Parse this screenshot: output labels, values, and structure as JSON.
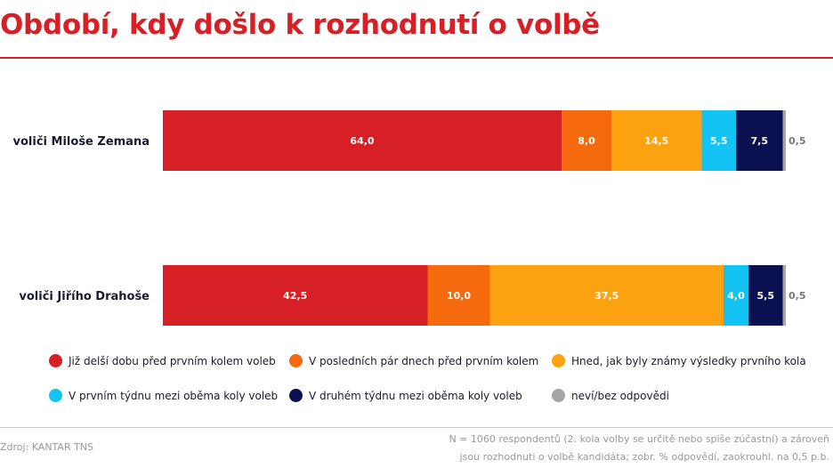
{
  "title": "Období, kdy došlo k rozhodnutí o volbě",
  "chart_data": {
    "type": "bar",
    "orientation": "horizontal",
    "stacked": true,
    "title": "Období, kdy došlo k rozhodnutí o volbě",
    "unit": "%",
    "xlim": [
      0,
      100
    ],
    "categories": [
      "voliči Miloše Zemana",
      "voliči Jiřího Drahoše"
    ],
    "series": [
      {
        "name": "Již delší dobu před prvním kolem voleb",
        "color": "#d71f26",
        "label_color": "#ffffff",
        "values": [
          64.0,
          42.5
        ]
      },
      {
        "name": "V posledních pár dnech před prvním kolem",
        "color": "#f46a0c",
        "label_color": "#ffffff",
        "values": [
          8.0,
          10.0
        ]
      },
      {
        "name": "Hned, jak byly známy výsledky prvního kola",
        "color": "#fca10f",
        "label_color": "#ffffff",
        "values": [
          14.5,
          37.5
        ]
      },
      {
        "name": "V prvním týdnu mezi oběma koly voleb",
        "color": "#12c3f4",
        "label_color": "#ffffff",
        "values": [
          5.5,
          4.0
        ]
      },
      {
        "name": "V druhém týdnu mezi oběma koly voleb",
        "color": "#0b1150",
        "label_color": "#ffffff",
        "values": [
          7.5,
          5.5
        ]
      },
      {
        "name": "neví/bez odpovědi",
        "color": "#a6a6a6",
        "label_color": "#777777",
        "values": [
          0.5,
          0.5
        ]
      }
    ],
    "value_labels": [
      [
        "64,0",
        "8,0",
        "14,5",
        "5,5",
        "7,5",
        "0,5"
      ],
      [
        "42,5",
        "10,0",
        "37,5",
        "4,0",
        "5,5",
        "0,5"
      ]
    ]
  },
  "source": "Zdroj: KANTAR TNS",
  "note_lines": [
    "N = 1060 respondentů (2. kola volby se určitě nebo spíše zúčastní) a zároveň",
    "jsou rozhodnuti o volbě kandidáta; zobr. % odpovědí, zaokrouhl. na 0,5 p.b."
  ]
}
